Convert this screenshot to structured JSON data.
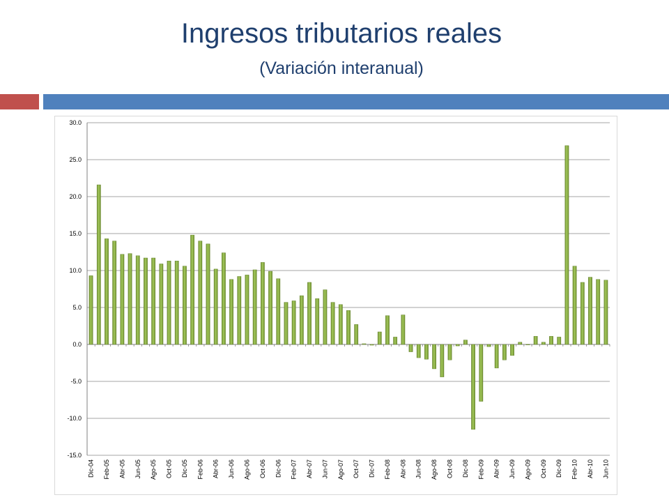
{
  "header": {
    "title": "Ingresos tributarios reales",
    "subtitle": "(Variación interanual)"
  },
  "colors": {
    "title": "#1f3f6e",
    "accent_red": "#c0504d",
    "accent_blue": "#4f81bd",
    "bar_fill": "#8db04a",
    "grid": "#a6a6a6"
  },
  "chart_data": {
    "type": "bar",
    "title": "",
    "xlabel": "",
    "ylabel": "",
    "ylim": [
      -15,
      30
    ],
    "yticks": [
      "30.0",
      "25.0",
      "20.0",
      "15.0",
      "10.0",
      "5.0",
      "0.0",
      "-5.0",
      "-10.0",
      "-15.0"
    ],
    "grid": true,
    "legend": "none",
    "tick_labels": [
      "Dic-04",
      "Feb-05",
      "Abr-05",
      "Jun-05",
      "Ago-05",
      "Oct-05",
      "Dic-05",
      "Feb-06",
      "Abr-06",
      "Jun-06",
      "Ago-06",
      "Oct-06",
      "Dic-06",
      "Feb-07",
      "Abr-07",
      "Jun-07",
      "Ago-07",
      "Oct-07",
      "Dic-07",
      "Feb-08",
      "Abr-08",
      "Jun-08",
      "Ago-08",
      "Oct-08",
      "Dic-08",
      "Feb-09",
      "Abr-09",
      "Jun-09",
      "Ago-09",
      "Oct-09",
      "Dic-09",
      "Feb-10",
      "Abr-10",
      "Jun-10"
    ],
    "values": [
      9.3,
      21.6,
      14.3,
      14.0,
      12.2,
      12.3,
      12.0,
      11.7,
      11.7,
      10.9,
      11.3,
      11.3,
      10.6,
      14.8,
      14.0,
      13.6,
      10.2,
      12.4,
      8.8,
      9.2,
      9.4,
      10.1,
      11.1,
      9.9,
      8.9,
      5.7,
      5.9,
      6.6,
      8.4,
      6.2,
      7.4,
      5.7,
      5.4,
      4.6,
      2.7,
      0.1,
      -0.1,
      1.7,
      3.9,
      1.0,
      4.0,
      -1.0,
      -1.8,
      -2.0,
      -3.3,
      -4.4,
      -2.1,
      -0.2,
      0.6,
      -11.5,
      -7.7,
      -0.3,
      -3.2,
      -2.1,
      -1.5,
      0.3,
      0.0,
      1.1,
      0.3,
      1.1,
      1.0,
      26.9,
      10.6,
      8.4,
      9.1,
      8.8,
      8.7
    ]
  }
}
